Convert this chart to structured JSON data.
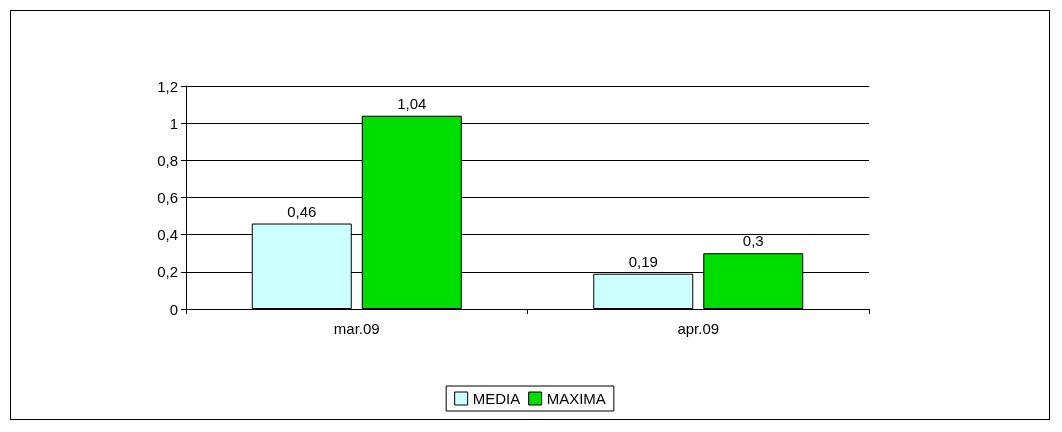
{
  "chart_data": {
    "type": "bar",
    "categories": [
      "mar.09",
      "apr.09"
    ],
    "series": [
      {
        "name": "MEDIA",
        "color": "#ccffff",
        "values": [
          0.46,
          0.19
        ],
        "value_labels": [
          "0,46",
          "0,19"
        ]
      },
      {
        "name": "MAXIMA",
        "color": "#00dd00",
        "values": [
          1.04,
          0.3
        ],
        "value_labels": [
          "1,04",
          "0,3"
        ]
      }
    ],
    "ylim": [
      0,
      1.2
    ],
    "yticks": [
      0,
      {
        "value": 0.2,
        "label": "0,2"
      },
      {
        "value": 0.4,
        "label": "0,4"
      },
      {
        "value": 0.6,
        "label": "0,6"
      },
      {
        "value": 0.8,
        "label": "0,8"
      },
      1,
      {
        "value": 1.2,
        "label": "1,2"
      }
    ],
    "grid": "y",
    "legend": "bottom"
  }
}
